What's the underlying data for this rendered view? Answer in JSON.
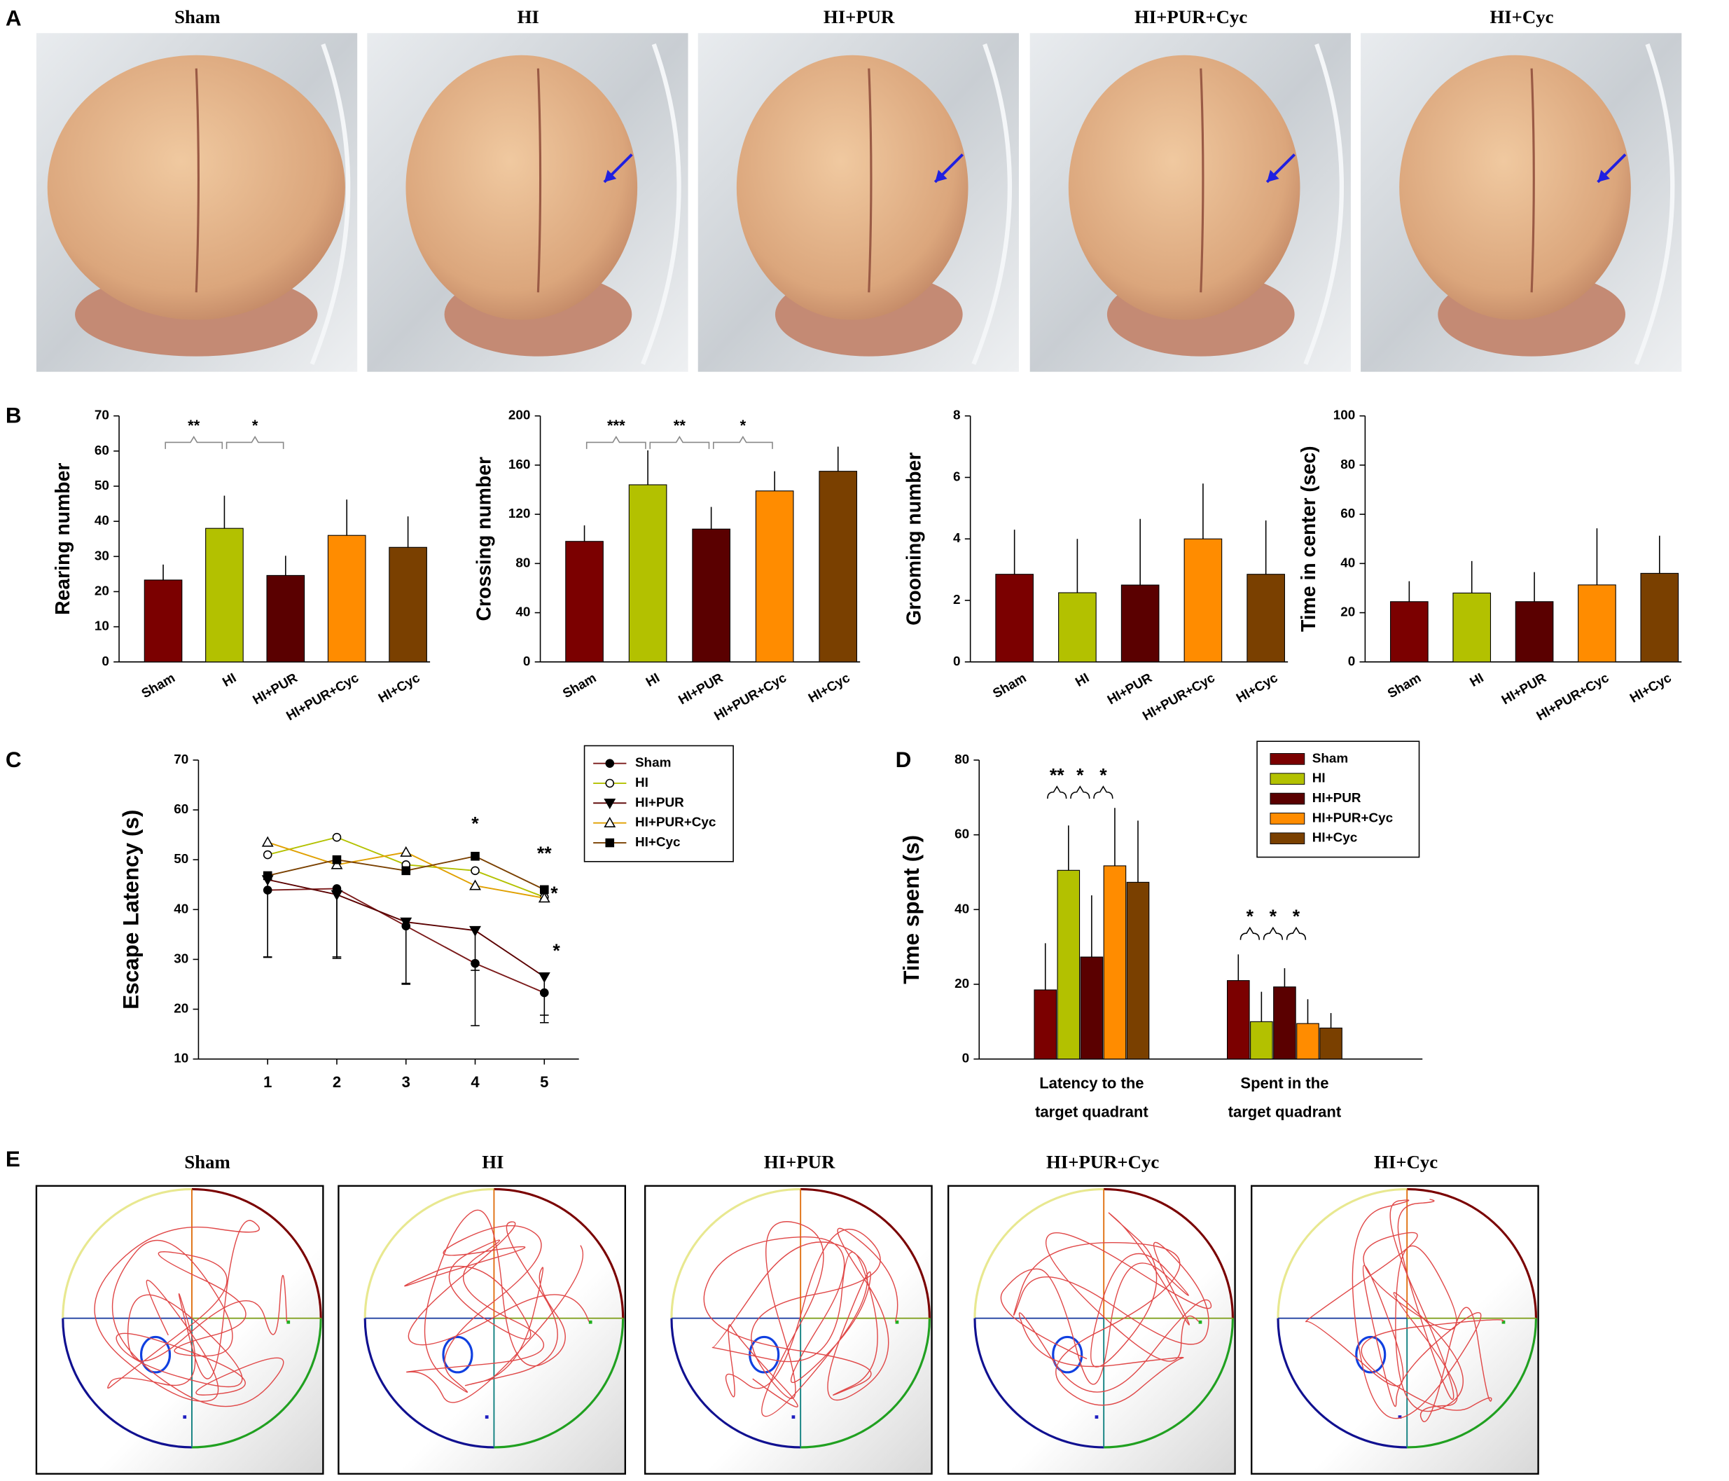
{
  "panel_labels": [
    "A",
    "B",
    "C",
    "D",
    "E"
  ],
  "photos": {
    "titles": [
      "Sham",
      "HI",
      "HI+PUR",
      "HI+PUR+Cyc",
      "HI+Cyc"
    ]
  },
  "mazes": {
    "titles": [
      "Sham",
      "HI",
      "HI+PUR",
      "HI+PUR+Cyc",
      "HI+Cyc"
    ]
  },
  "chart_data": [
    {
      "type": "bar",
      "y_label": "Rearing number",
      "categories": [
        "Sham",
        "HI",
        "HI+PUR",
        "HI+PUR+Cyc",
        "HI+Cyc"
      ],
      "values": [
        23.3,
        38,
        24.6,
        36,
        32.6
      ],
      "errors": [
        4.4,
        9.3,
        5.6,
        10.2,
        8.8
      ],
      "colors": [
        "#7b0000",
        "#b3c100",
        "#5a0000",
        "#ff8c00",
        "#7a4000"
      ],
      "ylim": [
        0,
        70
      ],
      "yticks": [
        0,
        10,
        20,
        30,
        40,
        50,
        60,
        70
      ],
      "annotations": [
        "**",
        "*"
      ]
    },
    {
      "type": "bar",
      "y_label": "Crossing number",
      "categories": [
        "Sham",
        "HI",
        "HI+PUR",
        "HI+PUR+Cyc",
        "HI+Cyc"
      ],
      "values": [
        98,
        144,
        108,
        139,
        155
      ],
      "errors": [
        13,
        28,
        18,
        16,
        20
      ],
      "colors": [
        "#7b0000",
        "#b3c100",
        "#5a0000",
        "#ff8c00",
        "#7a4000"
      ],
      "ylim": [
        0,
        200
      ],
      "yticks": [
        0,
        40,
        80,
        120,
        160,
        200
      ],
      "annotations": [
        "***",
        "**",
        "*"
      ]
    },
    {
      "type": "bar",
      "y_label": "Grooming number",
      "categories": [
        "Sham",
        "HI",
        "HI+PUR",
        "HI+PUR+Cyc",
        "HI+Cyc"
      ],
      "values": [
        2.85,
        2.25,
        2.5,
        4.0,
        2.85
      ],
      "errors": [
        1.45,
        1.75,
        2.15,
        1.8,
        1.75
      ],
      "colors": [
        "#7b0000",
        "#b3c100",
        "#5a0000",
        "#ff8c00",
        "#7a4000"
      ],
      "ylim": [
        0,
        8
      ],
      "yticks": [
        0,
        2,
        4,
        6,
        8
      ]
    },
    {
      "type": "bar",
      "y_label": "Time in center (sec)",
      "categories": [
        "Sham",
        "HI",
        "HI+PUR",
        "HI+PUR+Cyc",
        "HI+Cyc"
      ],
      "values": [
        24.5,
        28,
        24.5,
        31.3,
        36
      ],
      "errors": [
        8.3,
        13,
        12,
        23,
        15.3
      ],
      "colors": [
        "#7b0000",
        "#b3c100",
        "#5a0000",
        "#ff8c00",
        "#7a4000"
      ],
      "ylim": [
        0,
        100
      ],
      "yticks": [
        0,
        20,
        40,
        60,
        80,
        100
      ]
    },
    {
      "type": "line",
      "y_label": "Escape Latency (s)",
      "x": [
        1,
        2,
        3,
        4,
        5
      ],
      "xlim": [
        0,
        5.5
      ],
      "xticks": [
        1,
        2,
        3,
        4,
        5
      ],
      "ylim": [
        10,
        70
      ],
      "yticks": [
        10,
        20,
        30,
        40,
        50,
        60,
        70
      ],
      "series": [
        {
          "name": "Sham",
          "color": "#7b1a1a",
          "marker": "circle-filled",
          "values": [
            43.9,
            44.2,
            36.7,
            29.2,
            23.3
          ],
          "errors": [
            13.5,
            14,
            11.5,
            12.5,
            6
          ]
        },
        {
          "name": "HI",
          "color": "#b3c100",
          "marker": "circle-open",
          "values": [
            51,
            54.5,
            49,
            47.8,
            42.5
          ]
        },
        {
          "name": "HI+PUR",
          "color": "#5a0000",
          "marker": "triangle-down-filled",
          "values": [
            46,
            43,
            37.5,
            35.8,
            26.5
          ],
          "errors": [
            15.5,
            12.5,
            12.5,
            8,
            7.7
          ]
        },
        {
          "name": "HI+PUR+Cyc",
          "color": "#e0a000",
          "marker": "triangle-up-open",
          "values": [
            53.5,
            49,
            51.5,
            44.8,
            42.3
          ]
        },
        {
          "name": "HI+Cyc",
          "color": "#7a4000",
          "marker": "square-filled",
          "values": [
            46.8,
            50,
            47.8,
            50.7,
            44
          ]
        }
      ],
      "legend": "upper right",
      "annotations": [
        "*",
        "**",
        "*",
        "*"
      ]
    },
    {
      "type": "bar",
      "y_label": "Time spent (s)",
      "categories": [
        [
          "Latency to the",
          "target quadrant"
        ],
        [
          "Spent in the",
          "target quadrant"
        ]
      ],
      "ylim": [
        0,
        80
      ],
      "yticks": [
        0,
        20,
        40,
        60,
        80
      ],
      "series": [
        {
          "name": "Sham",
          "color": "#7b0000",
          "values": [
            18.5,
            21
          ],
          "errors": [
            12.5,
            7
          ]
        },
        {
          "name": "HI",
          "color": "#b3c100",
          "values": [
            50.5,
            10
          ],
          "errors": [
            12,
            8
          ]
        },
        {
          "name": "HI+PUR",
          "color": "#5a0000",
          "values": [
            27.3,
            19.3
          ],
          "errors": [
            16.5,
            5
          ]
        },
        {
          "name": "HI+PUR+Cyc",
          "color": "#ff8c00",
          "values": [
            51.7,
            9.5
          ],
          "errors": [
            15.5,
            6.5
          ]
        },
        {
          "name": "HI+Cyc",
          "color": "#7a4000",
          "values": [
            47.3,
            8.3
          ],
          "errors": [
            16.5,
            4
          ]
        }
      ],
      "legend": "upper right",
      "annotations": [
        "**",
        "*",
        "*",
        "*",
        "*",
        "*"
      ]
    }
  ]
}
